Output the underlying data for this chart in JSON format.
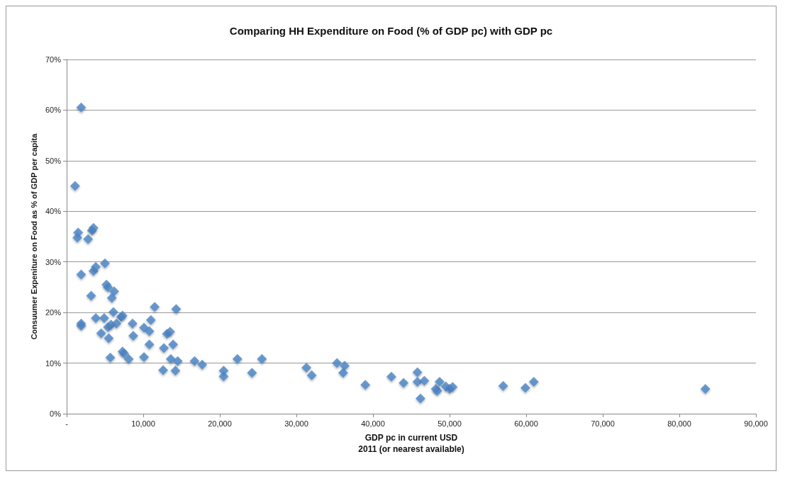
{
  "chart_data": {
    "type": "scatter",
    "title": "Comparing HH Expenditure on Food (% of GDP pc) with GDP pc",
    "xlabel": "GDP pc in current USD\n2011 (or nearest available)",
    "ylabel": "Consuumer Expeniture on Food as % of GDP per capita",
    "x": [
      1100,
      1900,
      1500,
      1400,
      2800,
      3300,
      3500,
      1900,
      3500,
      3800,
      5000,
      3200,
      5200,
      5400,
      6200,
      5900,
      6100,
      3800,
      1900,
      1900,
      4900,
      5400,
      5800,
      6500,
      7100,
      7300,
      4500,
      5500,
      5700,
      7300,
      7500,
      8100,
      8600,
      8700,
      10100,
      10800,
      11000,
      11500,
      10800,
      10100,
      12700,
      13100,
      13500,
      13900,
      12600,
      13600,
      14200,
      14500,
      14300,
      16700,
      17700,
      20500,
      20500,
      22300,
      24200,
      25500,
      31300,
      32000,
      35300,
      36300,
      36100,
      39000,
      42400,
      44000,
      45800,
      45800,
      46700,
      46200,
      48200,
      48400,
      48700,
      49500,
      50000,
      50400,
      57000,
      59900,
      61000,
      83400
    ],
    "series": [
      {
        "color": "#4a86c5",
        "values": [
          45,
          60.5,
          35.8,
          34.8,
          34.5,
          36.2,
          36.7,
          27.5,
          28.2,
          29,
          29.7,
          23.3,
          25.5,
          25,
          24.2,
          22.9,
          20.1,
          18.9,
          17.8,
          17.4,
          18.9,
          17.1,
          17.6,
          17.8,
          19.1,
          19.4,
          15.9,
          14.9,
          11.1,
          12.3,
          11.9,
          10.8,
          17.8,
          15.4,
          17,
          16.3,
          18.5,
          21.1,
          13.7,
          11.2,
          13,
          15.8,
          16.2,
          13.7,
          8.6,
          10.8,
          8.5,
          10.4,
          20.7,
          10.4,
          9.7,
          8.5,
          7.4,
          10.8,
          8.1,
          10.8,
          9.1,
          7.6,
          10,
          9.5,
          8.1,
          5.7,
          7.3,
          6.1,
          8.2,
          6.3,
          6.5,
          3.0,
          4.9,
          4.5,
          6.3,
          5.4,
          4.9,
          5.3,
          5.5,
          5.1,
          6.3,
          4.9
        ]
      }
    ],
    "xlim": [
      0,
      90000
    ],
    "xticks": [
      {
        "value": 0,
        "label": "-"
      },
      {
        "value": 10000,
        "label": "10,000"
      },
      {
        "value": 20000,
        "label": "20,000"
      },
      {
        "value": 30000,
        "label": "30,000"
      },
      {
        "value": 40000,
        "label": "40,000"
      },
      {
        "value": 50000,
        "label": "50,000"
      },
      {
        "value": 60000,
        "label": "60,000"
      },
      {
        "value": 70000,
        "label": "70,000"
      },
      {
        "value": 80000,
        "label": "80,000"
      },
      {
        "value": 90000,
        "label": "90,000"
      }
    ],
    "ylim": [
      0,
      70
    ],
    "yticks": [
      {
        "value": 0,
        "label": "0%"
      },
      {
        "value": 10,
        "label": "10%"
      },
      {
        "value": 20,
        "label": "20%"
      },
      {
        "value": 30,
        "label": "30%"
      },
      {
        "value": 40,
        "label": "40%"
      },
      {
        "value": 50,
        "label": "50%"
      },
      {
        "value": 60,
        "label": "60%"
      },
      {
        "value": 70,
        "label": "70%"
      }
    ],
    "grid": "y",
    "marker": "diamond"
  }
}
